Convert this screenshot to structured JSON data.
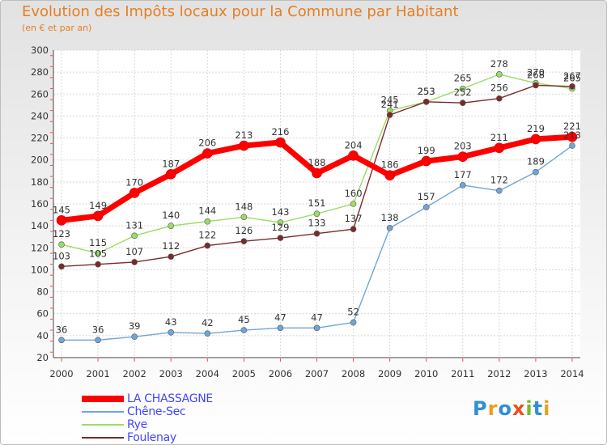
{
  "header": {
    "title": "Evolution des Impôts locaux pour la Commune par Habitant",
    "subtitle": "(en € et par an)"
  },
  "brand": {
    "text": "Proxiti"
  },
  "chart_data": {
    "type": "line",
    "title": "Evolution des Impôts locaux pour la Commune par Habitant",
    "subtitle": "(en € et par an)",
    "xlabel": "",
    "ylabel": "",
    "x": [
      2000,
      2001,
      2002,
      2003,
      2004,
      2005,
      2006,
      2007,
      2008,
      2009,
      2010,
      2011,
      2012,
      2013,
      2014
    ],
    "ylim": [
      20,
      300
    ],
    "yticks": [
      20,
      40,
      60,
      80,
      100,
      120,
      140,
      160,
      180,
      200,
      220,
      240,
      260,
      280,
      300
    ],
    "grid": true,
    "legend_position": "bottom-left",
    "series": [
      {
        "name": "LA CHASSAGNE",
        "color": "#ff0000",
        "emphasis": true,
        "values": [
          145,
          149,
          170,
          187,
          206,
          213,
          216,
          188,
          204,
          186,
          199,
          203,
          211,
          219,
          221
        ]
      },
      {
        "name": "Chêne-Sec",
        "color": "#6fa6d6",
        "values": [
          36,
          36,
          39,
          43,
          42,
          45,
          47,
          47,
          52,
          138,
          157,
          177,
          172,
          189,
          213
        ]
      },
      {
        "name": "Rye",
        "color": "#99dd66",
        "values": [
          123,
          115,
          131,
          140,
          144,
          148,
          143,
          151,
          160,
          245,
          253,
          265,
          278,
          270,
          265
        ]
      },
      {
        "name": "Foulenay",
        "color": "#7a2a2a",
        "values": [
          103,
          105,
          107,
          112,
          122,
          126,
          129,
          133,
          137,
          241,
          253,
          252,
          256,
          268,
          267
        ]
      }
    ]
  }
}
